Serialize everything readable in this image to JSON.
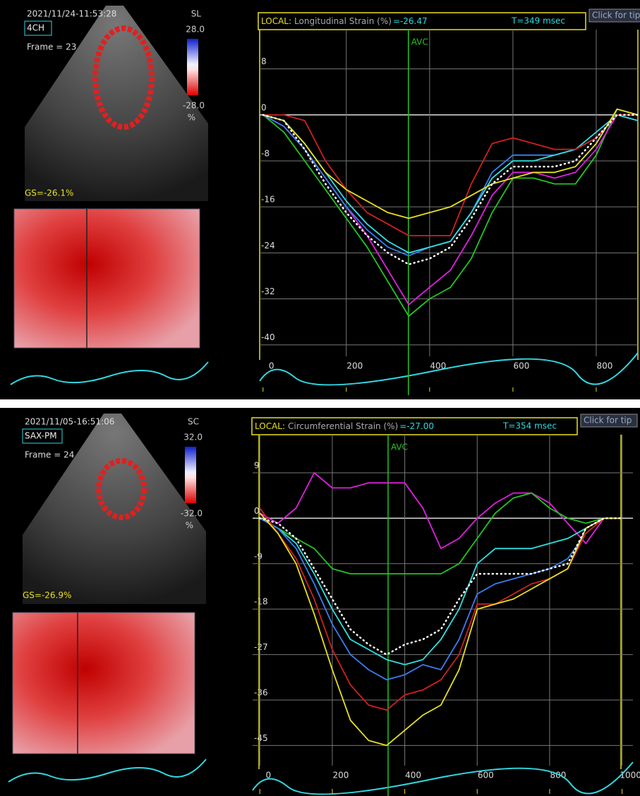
{
  "chart_data": [
    {
      "type": "line",
      "local_label": "LOCAL:",
      "title": "Longitudinal Strain (%)",
      "readout": "=-26.47",
      "time_label": "T=349 msec",
      "tip": "Click for tip",
      "annotation": {
        "text": "AVC",
        "x": 349
      },
      "x": [
        0,
        50,
        100,
        150,
        200,
        250,
        300,
        350,
        400,
        450,
        500,
        550,
        600,
        650,
        700,
        750,
        800,
        850,
        900
      ],
      "xlim": [
        -8,
        900
      ],
      "xticks": [
        0,
        200,
        400,
        600,
        800
      ],
      "ylim": [
        -42,
        14.7
      ],
      "yticks": [
        8,
        0,
        -8,
        -16,
        -24,
        -32,
        -40
      ],
      "grid": true,
      "series": [
        {
          "color": "#22c422",
          "values": [
            0,
            -3,
            -8,
            -13,
            -18,
            -23,
            -29,
            -35,
            -32,
            -30,
            -25,
            -17,
            -11,
            -11,
            -12,
            -12,
            -7,
            1,
            0
          ]
        },
        {
          "color": "#e020e0",
          "values": [
            0,
            -2,
            -6,
            -11,
            -16,
            -21,
            -27,
            -33,
            -30,
            -27,
            -21,
            -14,
            -10,
            -10,
            -11,
            -10,
            -6,
            0,
            -1
          ]
        },
        {
          "color": "#3a7ef0",
          "values": [
            0,
            -2,
            -6,
            -11,
            -16,
            -20,
            -23,
            -24.5,
            -23,
            -22,
            -17,
            -10,
            -7,
            -7,
            -7,
            -6,
            -4,
            0,
            0
          ]
        },
        {
          "color": "#30e0e0",
          "values": [
            0,
            -1,
            -5,
            -10,
            -15,
            -19,
            -22,
            -24,
            -23,
            -22,
            -17,
            -11,
            -8,
            -8,
            -7,
            -6,
            -3,
            0,
            -1
          ]
        },
        {
          "color": "#d02020",
          "values": [
            0,
            0,
            -1,
            -8,
            -13,
            -17,
            -19,
            -21,
            -21,
            -21,
            -12,
            -5,
            -4,
            -5,
            -6,
            -6,
            -4,
            0,
            0
          ]
        },
        {
          "color": "#e8e020",
          "values": [
            0,
            -1,
            -5,
            -10,
            -13,
            -15,
            -17,
            -18,
            -17,
            -16,
            -14,
            -12,
            -11,
            -10,
            -10,
            -9,
            -5,
            1,
            0
          ]
        },
        {
          "color": "#ffffff",
          "style": "dotted",
          "values": [
            0,
            -1,
            -6,
            -12,
            -17,
            -21,
            -24,
            -26,
            -25,
            -23,
            -18,
            -12,
            -9,
            -9,
            -9,
            -8,
            -4,
            0,
            0
          ]
        }
      ],
      "image_panel": {
        "timestamp": "2021/11/24-11:53:28",
        "view": "4CH",
        "frame": "Frame = 23",
        "scale_label": "SL",
        "scale_max": "28.0",
        "scale_min": "-28.0",
        "scale_unit": "%",
        "global_strain": "GS=-26.1%"
      }
    },
    {
      "type": "line",
      "local_label": "LOCAL:",
      "title": "Circumferential Strain (%)",
      "readout": "=-27.00",
      "time_label": "T=354 msec",
      "tip": "Click for tip",
      "annotation": {
        "text": "AVC",
        "x": 354
      },
      "x": [
        0,
        50,
        100,
        150,
        200,
        250,
        300,
        350,
        400,
        450,
        500,
        550,
        600,
        650,
        700,
        750,
        800,
        850,
        900,
        950,
        1000
      ],
      "xlim": [
        -20,
        1030
      ],
      "xticks": [
        0,
        200,
        400,
        600,
        800,
        1000
      ],
      "ylim": [
        -49,
        16.4
      ],
      "yticks": [
        9,
        0,
        -9,
        -18,
        -27,
        -36,
        -45
      ],
      "grid": true,
      "series": [
        {
          "color": "#e020e0",
          "values": [
            1,
            -1,
            2,
            9,
            6,
            6,
            7,
            7,
            7,
            2,
            -6,
            -4,
            0,
            3,
            5,
            5,
            3,
            -1,
            -5,
            0,
            0
          ]
        },
        {
          "color": "#22c422",
          "values": [
            0,
            -2,
            -4,
            -6,
            -10,
            -11,
            -11,
            -11,
            -11,
            -11,
            -11,
            -9,
            -4,
            1,
            4,
            5,
            2,
            0,
            -1,
            0,
            0
          ]
        },
        {
          "color": "#30e0e0",
          "values": [
            0,
            -2,
            -5,
            -11,
            -18,
            -24,
            -26,
            -28,
            -29,
            -28,
            -24,
            -18,
            -9,
            -6,
            -6,
            -6,
            -5,
            -4,
            -2,
            0,
            0
          ]
        },
        {
          "color": "#3a7ef0",
          "values": [
            0,
            -2,
            -6,
            -13,
            -21,
            -27,
            -30,
            -32,
            -31,
            -29,
            -30,
            -24,
            -15,
            -13,
            -12,
            -11,
            -10,
            -8,
            -3,
            0,
            0
          ]
        },
        {
          "color": "#d02020",
          "values": [
            2,
            -3,
            -8,
            -16,
            -26,
            -33,
            -37,
            -38,
            -35,
            -34,
            -32,
            -27,
            -17,
            -17,
            -15,
            -13,
            -12,
            -10,
            -3,
            0,
            0
          ]
        },
        {
          "color": "#e8e020",
          "values": [
            1,
            -3,
            -9,
            -19,
            -30,
            -40,
            -44,
            -45,
            -42,
            -39,
            -37,
            -30,
            -18,
            -17,
            -16,
            -14,
            -12,
            -10,
            -2,
            0,
            0
          ]
        },
        {
          "color": "#ffffff",
          "style": "dotted",
          "values": [
            0,
            -1,
            -4,
            -10,
            -16,
            -22,
            -25,
            -27,
            -25,
            -24,
            -22,
            -16,
            -11,
            -11,
            -11,
            -11,
            -10,
            -9,
            -2,
            0,
            0
          ]
        }
      ],
      "image_panel": {
        "timestamp": "2021/11/05-16:51:06",
        "view": "SAX-PM",
        "frame": "Frame = 24",
        "scale_label": "SC",
        "scale_max": "32.0",
        "scale_min": "-32.0",
        "scale_unit": "%",
        "global_strain": "GS=-26.9%"
      }
    }
  ]
}
